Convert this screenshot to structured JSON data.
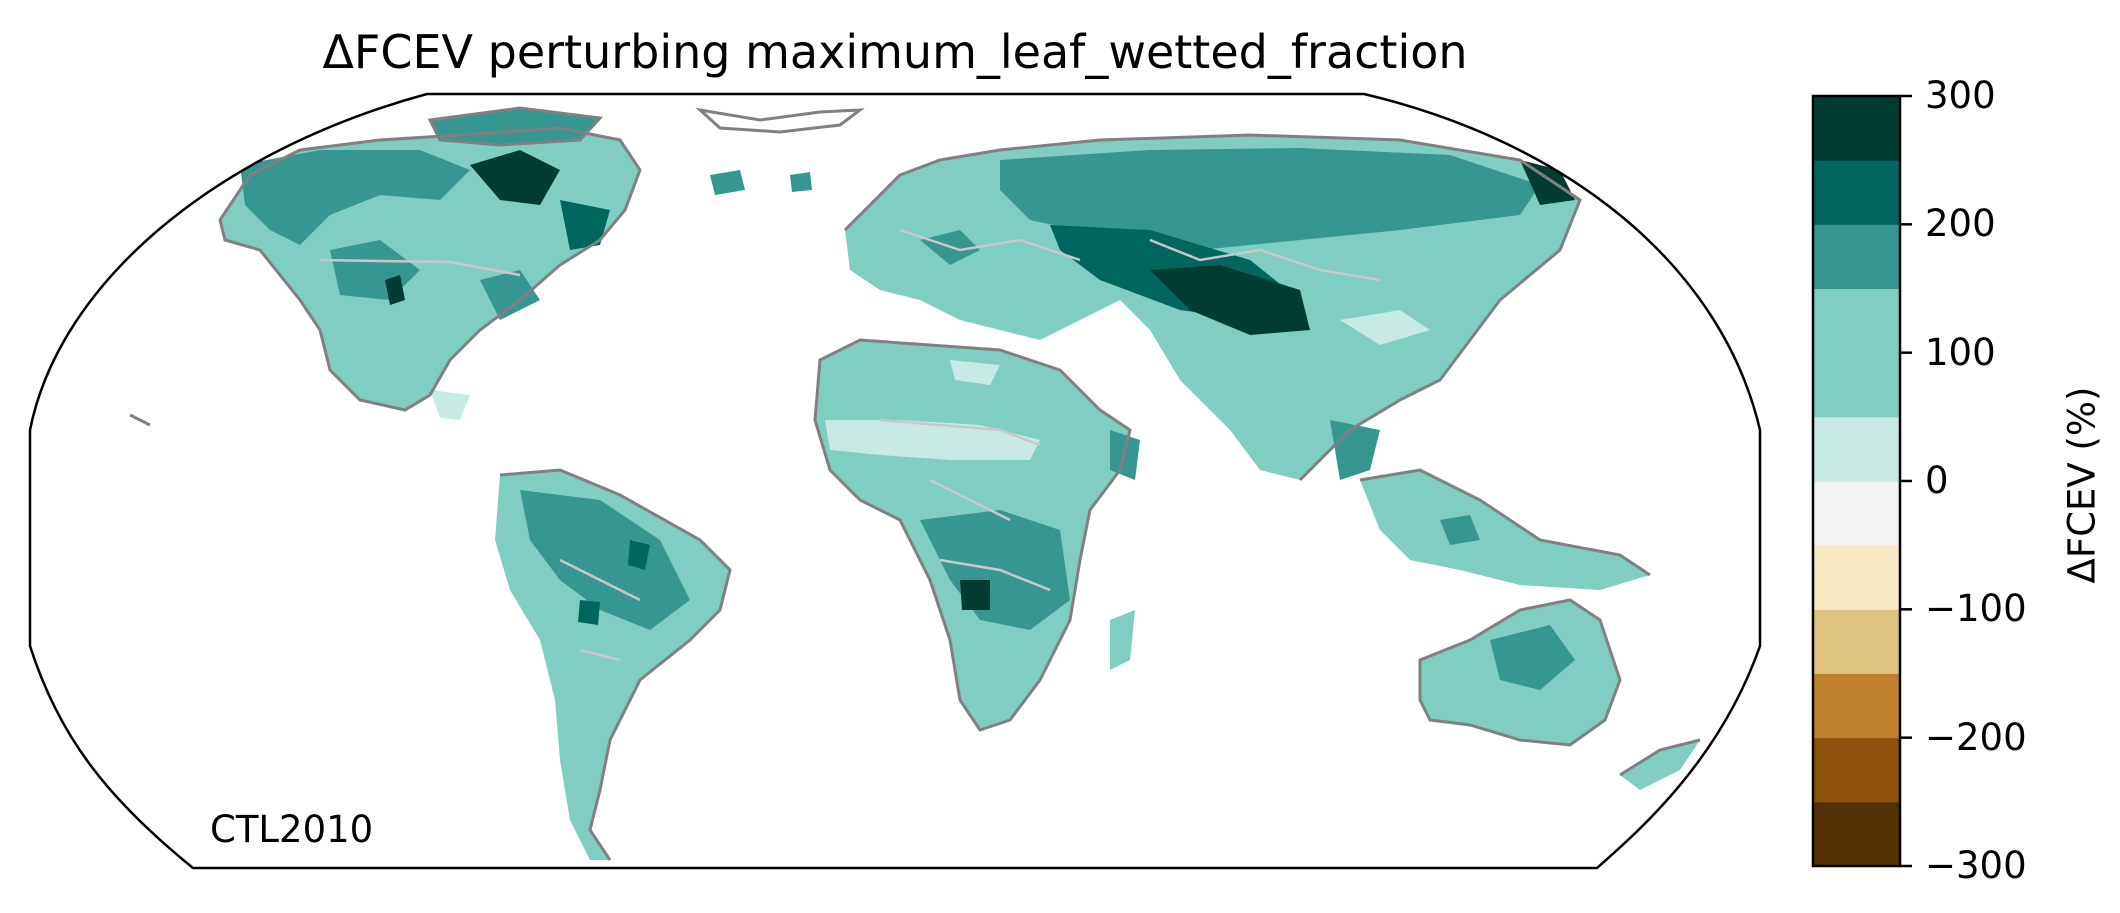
{
  "title": "ΔFCEV perturbing maximum_leaf_wetted_fraction",
  "run_label": "CTL2010",
  "colorbar": {
    "label": "ΔFCEV (%)",
    "min": -300,
    "max": 300,
    "ticks": [
      "300",
      "200",
      "100",
      "0",
      "−100",
      "−200",
      "−300"
    ],
    "bins": [
      {
        "from": -300,
        "to": -250,
        "color": "#543005"
      },
      {
        "from": -250,
        "to": -200,
        "color": "#8c510a"
      },
      {
        "from": -200,
        "to": -150,
        "color": "#bf812d"
      },
      {
        "from": -150,
        "to": -100,
        "color": "#dfc27d"
      },
      {
        "from": -100,
        "to": -50,
        "color": "#f6e8c3"
      },
      {
        "from": -50,
        "to": 0,
        "color": "#f2f2f2"
      },
      {
        "from": 0,
        "to": 50,
        "color": "#c7eae5"
      },
      {
        "from": 50,
        "to": 100,
        "color": "#80cdc1"
      },
      {
        "from": 100,
        "to": 150,
        "color": "#80cdc1"
      },
      {
        "from": 150,
        "to": 200,
        "color": "#35978f"
      },
      {
        "from": 200,
        "to": 250,
        "color": "#01665e"
      },
      {
        "from": 250,
        "to": 300,
        "color": "#003c30"
      }
    ]
  },
  "map_colors": {
    "coastline": "#808080",
    "borders": "#c8c8c8",
    "frame": "#000000"
  }
}
